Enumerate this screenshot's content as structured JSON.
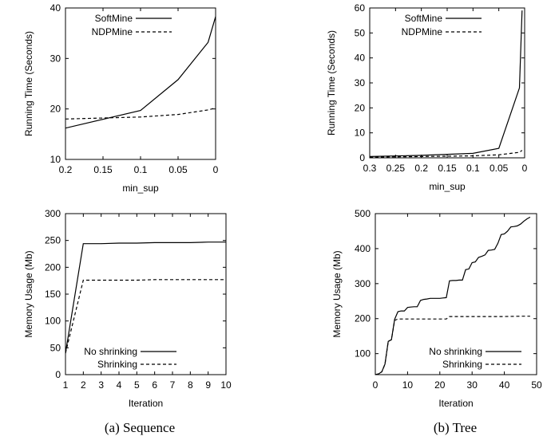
{
  "chart_data": [
    {
      "type": "line",
      "xlabel": "min_sup",
      "ylabel": "Running Time (Seconds)",
      "xlim": [
        0.2,
        0
      ],
      "ylim": [
        10,
        40
      ],
      "xticks": [
        0.2,
        0.15,
        0.1,
        0.05,
        0
      ],
      "xtick_labels": [
        "0.2",
        "0.15",
        "0.1",
        "0.05",
        "0"
      ],
      "yticks": [
        10,
        20,
        30,
        40
      ],
      "ytick_labels": [
        "10",
        "20",
        "30",
        "40"
      ],
      "legend": "top-left",
      "caption": "(a) Sequence",
      "series": [
        {
          "name": "SoftMine",
          "style": "solid",
          "x": [
            0.2,
            0.1,
            0.05,
            0.01,
            0.0
          ],
          "y": [
            16.2,
            19.7,
            25.8,
            33.2,
            38.3
          ]
        },
        {
          "name": "NDPMine",
          "style": "dashed",
          "x": [
            0.2,
            0.1,
            0.05,
            0.01,
            0.0
          ],
          "y": [
            18.0,
            18.4,
            18.9,
            19.8,
            20.2
          ]
        }
      ]
    },
    {
      "type": "line",
      "xlabel": "min_sup",
      "ylabel": "Running Time (Seconds)",
      "xlim": [
        0.3,
        0
      ],
      "ylim": [
        0,
        60
      ],
      "xticks": [
        0.3,
        0.25,
        0.2,
        0.15,
        0.1,
        0.05,
        0
      ],
      "xtick_labels": [
        "0.3",
        "0.25",
        "0.2",
        "0.15",
        "0.1",
        "0.05",
        "0"
      ],
      "yticks": [
        0,
        10,
        20,
        30,
        40,
        50,
        60
      ],
      "ytick_labels": [
        "0",
        "10",
        "20",
        "30",
        "40",
        "50",
        "60"
      ],
      "legend": "top-left",
      "caption": "(b) Tree",
      "series": [
        {
          "name": "SoftMine",
          "style": "solid",
          "x": [
            0.3,
            0.2,
            0.1,
            0.05,
            0.01,
            0.005
          ],
          "y": [
            0.5,
            1.0,
            1.8,
            3.8,
            28.0,
            59.0
          ]
        },
        {
          "name": "NDPMine",
          "style": "dashed",
          "x": [
            0.3,
            0.2,
            0.1,
            0.05,
            0.01,
            0.005
          ],
          "y": [
            0.3,
            0.5,
            0.8,
            1.2,
            2.2,
            3.0
          ]
        }
      ]
    },
    {
      "type": "line",
      "xlabel": "Iteration",
      "ylabel": "Memory Usage (Mb)",
      "xlim": [
        1,
        10
      ],
      "ylim": [
        0,
        300
      ],
      "xticks": [
        1,
        2,
        3,
        4,
        5,
        6,
        7,
        8,
        9,
        10
      ],
      "xtick_labels": [
        "1",
        "2",
        "3",
        "4",
        "5",
        "6",
        "7",
        "8",
        "9",
        "10"
      ],
      "yticks": [
        0,
        50,
        100,
        150,
        200,
        250,
        300
      ],
      "ytick_labels": [
        "0",
        "50",
        "100",
        "150",
        "200",
        "250",
        "300"
      ],
      "legend": "bottom-right",
      "series": [
        {
          "name": "No shrinking",
          "style": "solid",
          "x": [
            1,
            2,
            3,
            4,
            5,
            6,
            7,
            8,
            9,
            10
          ],
          "y": [
            40,
            244,
            244,
            245,
            245,
            246,
            246,
            246,
            247,
            247
          ]
        },
        {
          "name": "Shrinking",
          "style": "dashed",
          "x": [
            1,
            2,
            3,
            4,
            5,
            6,
            7,
            8,
            9,
            10
          ],
          "y": [
            40,
            176,
            176,
            176,
            176,
            177,
            177,
            177,
            177,
            177
          ]
        }
      ]
    },
    {
      "type": "line",
      "xlabel": "Iteration",
      "ylabel": "Memory Usage (Mb)",
      "xlim": [
        0,
        50
      ],
      "ylim": [
        40,
        500
      ],
      "xticks": [
        0,
        10,
        20,
        30,
        40,
        50
      ],
      "xtick_labels": [
        "0",
        "10",
        "20",
        "30",
        "40",
        "50"
      ],
      "yticks": [
        100,
        200,
        300,
        400,
        500
      ],
      "ytick_labels": [
        "100",
        "200",
        "300",
        "400",
        "500"
      ],
      "legend": "bottom-right",
      "series": [
        {
          "name": "No shrinking",
          "style": "solid",
          "x": [
            0,
            1,
            2,
            3,
            4,
            5,
            6,
            7,
            8,
            9,
            10,
            11,
            12,
            13,
            14,
            15,
            16,
            17,
            18,
            19,
            20,
            21,
            22,
            23,
            24,
            25,
            26,
            27,
            28,
            29,
            30,
            31,
            32,
            33,
            34,
            35,
            36,
            37,
            38,
            39,
            40,
            41,
            42,
            43,
            44,
            45,
            46,
            47,
            48
          ],
          "y": [
            40,
            42,
            48,
            70,
            135,
            140,
            198,
            220,
            222,
            222,
            232,
            233,
            234,
            234,
            252,
            255,
            256,
            258,
            258,
            258,
            258,
            259,
            260,
            308,
            309,
            309,
            310,
            310,
            340,
            342,
            360,
            362,
            375,
            378,
            382,
            395,
            396,
            398,
            415,
            440,
            442,
            450,
            462,
            463,
            465,
            470,
            478,
            485,
            490
          ]
        },
        {
          "name": "Shrinking",
          "style": "dashed",
          "x": [
            0,
            1,
            2,
            3,
            4,
            5,
            6,
            7,
            8,
            10,
            15,
            20,
            22,
            23,
            25,
            30,
            35,
            40,
            45,
            48
          ],
          "y": [
            40,
            42,
            48,
            70,
            135,
            140,
            195,
            199,
            199,
            199,
            199,
            199,
            199,
            206,
            206,
            206,
            206,
            206,
            207,
            207
          ]
        }
      ]
    }
  ]
}
